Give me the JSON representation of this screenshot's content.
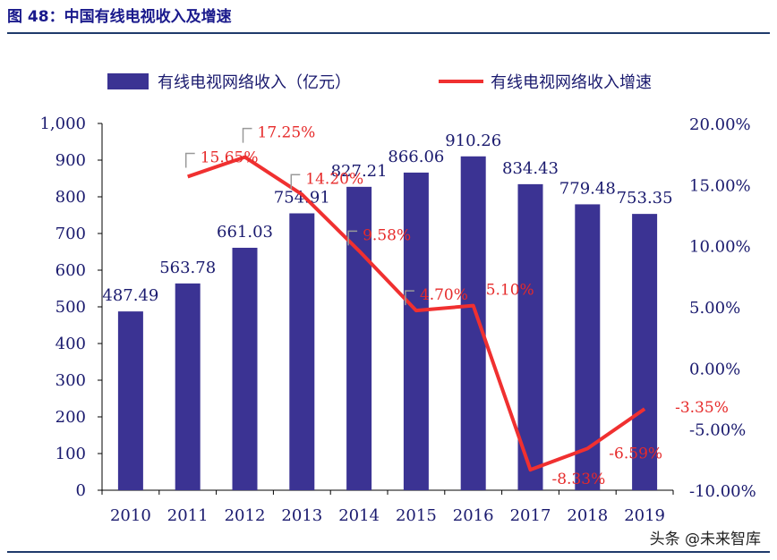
{
  "header": {
    "title": "图 48：中国有线电视收入及增速"
  },
  "watermark": "头条 @未来智库",
  "chart_data": {
    "type": "bar",
    "categories": [
      "2010",
      "2011",
      "2012",
      "2013",
      "2014",
      "2015",
      "2016",
      "2017",
      "2018",
      "2019"
    ],
    "series": [
      {
        "name": "有线电视网络收入（亿元）",
        "type": "bar",
        "axis": "left",
        "values": [
          487.49,
          563.78,
          661.03,
          754.91,
          827.21,
          866.06,
          910.26,
          834.43,
          779.48,
          753.35
        ],
        "labels": [
          "487.49",
          "563.78",
          "661.03",
          "754.91",
          "827.21",
          "866.06",
          "910.26",
          "834.43",
          "779.48",
          "753.35"
        ]
      },
      {
        "name": "有线电视网络收入增速",
        "type": "line",
        "axis": "right",
        "values": [
          null,
          15.65,
          17.25,
          14.2,
          9.58,
          4.7,
          5.1,
          -8.33,
          -6.59,
          -3.35
        ],
        "labels": [
          null,
          "15.65%",
          "17.25%",
          "14.20%",
          "9.58%",
          "4.70%",
          "5.10%",
          "-8.33%",
          "-6.59%",
          "-3.35%"
        ]
      }
    ],
    "y_left": {
      "ylim": [
        0,
        1000
      ],
      "ticks": [
        "0",
        "100",
        "200",
        "300",
        "400",
        "500",
        "600",
        "700",
        "800",
        "900",
        "1,000"
      ]
    },
    "y_right": {
      "ylim": [
        -10,
        20
      ],
      "ticks": [
        "-10.00%",
        "-5.00%",
        "0.00%",
        "5.00%",
        "10.00%",
        "15.00%",
        "20.00%"
      ]
    },
    "legend_position": "top",
    "grid": false,
    "colors": {
      "bar": "#3b3393",
      "line": "#f03030"
    }
  }
}
